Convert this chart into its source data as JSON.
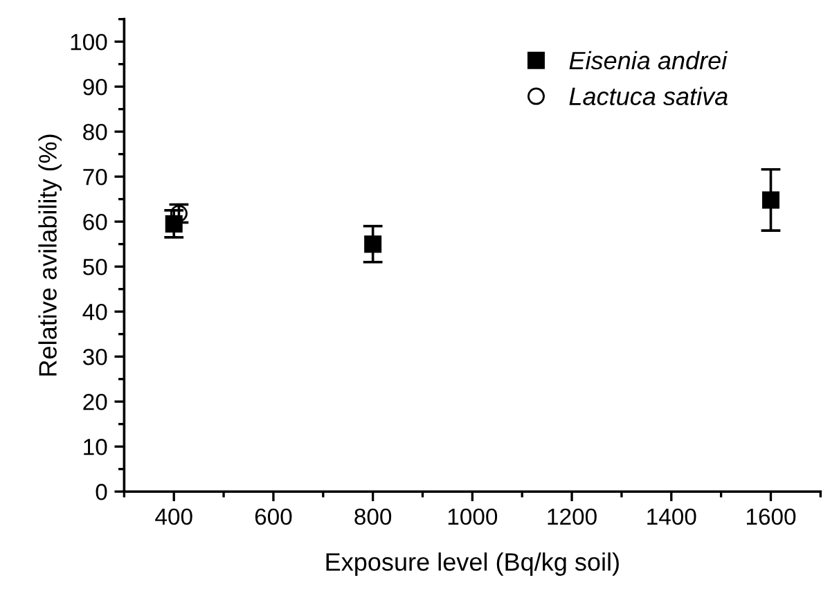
{
  "chart_data": {
    "type": "scatter",
    "xlabel": "Exposure level (Bq/kg soil)",
    "ylabel": "Relative avilability (%)",
    "xlim": [
      300,
      1700
    ],
    "xticks": [
      400,
      600,
      800,
      1000,
      1200,
      1400,
      1600
    ],
    "ylim": [
      0,
      105
    ],
    "yticks": [
      0,
      10,
      20,
      30,
      40,
      50,
      60,
      70,
      80,
      90,
      100
    ],
    "legend": "top right",
    "grid": false,
    "series": [
      {
        "name": "Eisenia andrei",
        "color": "#000000",
        "marker": "square",
        "x": [
          400,
          800,
          1600
        ],
        "values": [
          59.5,
          55,
          64.8
        ],
        "errors": [
          3,
          4,
          6.8
        ]
      },
      {
        "name": "Lactuca sativa",
        "color": "#000000",
        "marker": "circle",
        "x": [
          410
        ],
        "values": [
          61.8
        ],
        "errors": [
          2
        ]
      }
    ]
  }
}
